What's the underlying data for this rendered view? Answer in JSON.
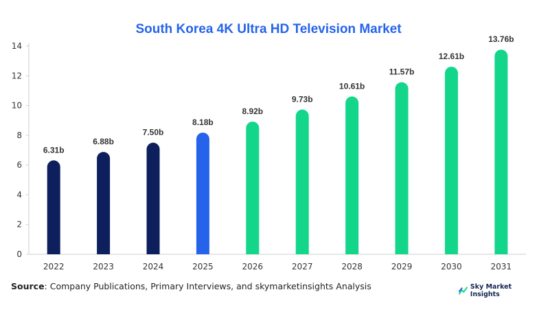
{
  "title": "South Korea 4K Ultra HD Television Market",
  "source": {
    "label": "Source",
    "text": ": Company Publications, Primary Interviews, and skymarketinsights Analysis"
  },
  "logo_text": "Sky Market Insights",
  "colors": {
    "title": "#2563eb",
    "historical": "#0d1f5c",
    "base_year": "#2563eb",
    "forecast": "#13d68a"
  },
  "chart_data": {
    "type": "bar",
    "title": "South Korea 4K Ultra HD Television Market",
    "categories": [
      "2022",
      "2023",
      "2024",
      "2025",
      "2026",
      "2027",
      "2028",
      "2029",
      "2030",
      "2031"
    ],
    "values": [
      6.31,
      6.88,
      7.5,
      8.18,
      8.92,
      9.73,
      10.61,
      11.57,
      12.61,
      13.76
    ],
    "data_labels": [
      "6.31b",
      "6.88b",
      "7.50b",
      "8.18b",
      "8.92b",
      "9.73b",
      "10.61b",
      "11.57b",
      "12.61b",
      "13.76b"
    ],
    "bar_colors": [
      "#0d1f5c",
      "#0d1f5c",
      "#0d1f5c",
      "#2563eb",
      "#13d68a",
      "#13d68a",
      "#13d68a",
      "#13d68a",
      "#13d68a",
      "#13d68a"
    ],
    "yticks": [
      0,
      2,
      4,
      6,
      8,
      10,
      12,
      14
    ],
    "ylim": [
      0,
      14
    ],
    "xlabel": "",
    "ylabel": "",
    "grid": false,
    "legend": "none"
  }
}
